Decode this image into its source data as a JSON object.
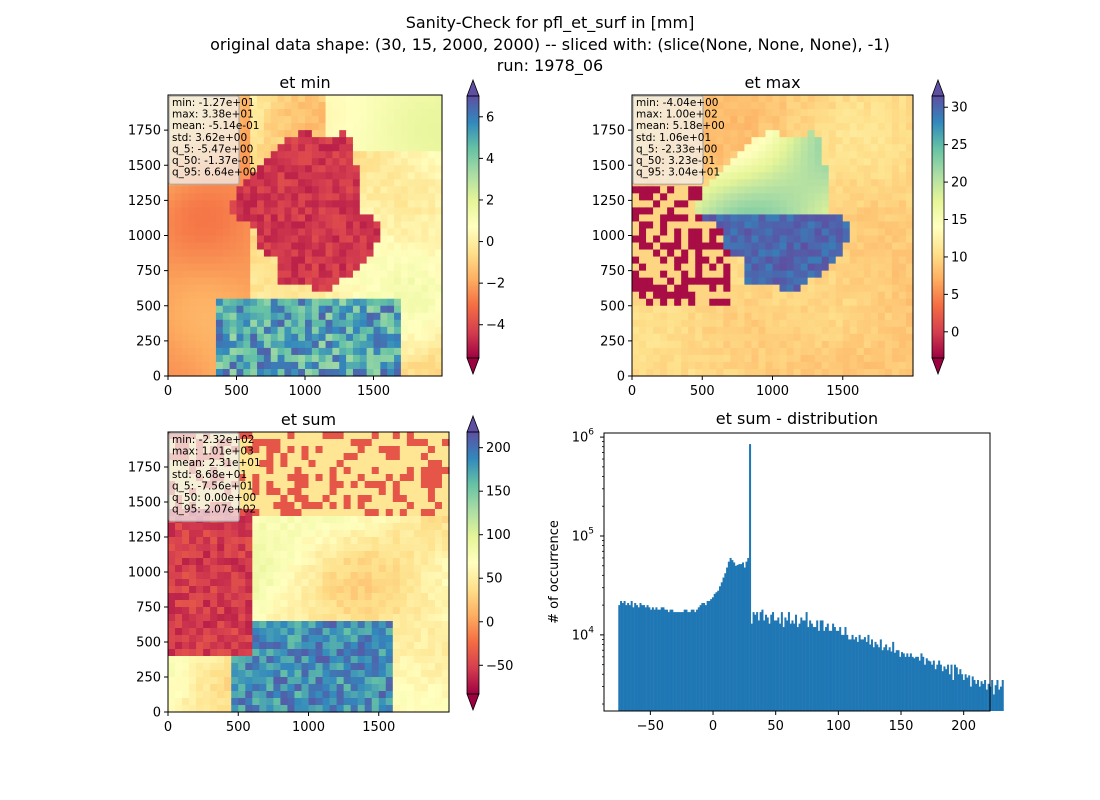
{
  "figure": {
    "title_lines": [
      "Sanity-Check for pfl_et_surf in [mm]",
      "original data shape: (30, 15, 2000, 2000) -- sliced with: (slice(None, None, None), -1)",
      "run: 1978_06"
    ]
  },
  "colors": {
    "cmap": [
      "#9e0142",
      "#d53e4f",
      "#f46d43",
      "#fdae61",
      "#fee08b",
      "#ffffbf",
      "#e6f598",
      "#abdda4",
      "#66c2a5",
      "#3288bd",
      "#5e4fa2"
    ],
    "hist_bar": "#1f77b4"
  },
  "chart_data": [
    {
      "type": "heatmap",
      "title": "et min",
      "xlim": [
        0,
        2000
      ],
      "ylim": [
        0,
        2000
      ],
      "xticks": [
        "0",
        "500",
        "1000",
        "1500"
      ],
      "yticks": [
        "0",
        "250",
        "500",
        "750",
        "1000",
        "1250",
        "1500",
        "1750"
      ],
      "colorbar": {
        "range": [
          -5.6,
          7.0
        ],
        "ticks": [
          "−4",
          "−2",
          "0",
          "2",
          "4",
          "6"
        ],
        "extend": "both"
      },
      "stats": [
        "min: -1.27e+01",
        "max: 3.38e+01",
        "mean: -5.14e-01",
        "std: 3.62e+00",
        "q_5: -5.47e+00",
        "q_50: -1.37e-01",
        "q_95: 6.64e+00"
      ]
    },
    {
      "type": "heatmap",
      "title": "et max",
      "xlim": [
        0,
        2000
      ],
      "ylim": [
        0,
        2000
      ],
      "xticks": [
        "0",
        "500",
        "1000",
        "1500"
      ],
      "yticks": [
        "0",
        "250",
        "500",
        "750",
        "1000",
        "1250",
        "1500",
        "1750"
      ],
      "colorbar": {
        "range": [
          -3.5,
          31.5
        ],
        "ticks": [
          "0",
          "5",
          "10",
          "15",
          "20",
          "25",
          "30"
        ],
        "extend": "both"
      },
      "stats": [
        "min: -4.04e+00",
        "max: 1.00e+02",
        "mean: 5.18e+00",
        "std: 1.06e+01",
        "q_5: -2.33e+00",
        "q_50: 3.23e-01",
        "q_95: 3.04e+01"
      ]
    },
    {
      "type": "heatmap",
      "title": "et sum",
      "xlim": [
        0,
        2000
      ],
      "ylim": [
        0,
        2000
      ],
      "xticks": [
        "0",
        "500",
        "1000",
        "1500"
      ],
      "yticks": [
        "0",
        "250",
        "500",
        "750",
        "1000",
        "1250",
        "1500",
        "1750"
      ],
      "colorbar": {
        "range": [
          -83,
          218
        ],
        "ticks": [
          "−50",
          "0",
          "50",
          "100",
          "150",
          "200"
        ],
        "extend": "both"
      },
      "stats": [
        "min: -2.32e+02",
        "max: 1.01e+03",
        "mean: 2.31e+01",
        "std: 8.68e+01",
        "q_5: -7.56e+01",
        "q_50: 0.00e+00",
        "q_95: 2.07e+02"
      ]
    },
    {
      "type": "bar",
      "title": "et sum - distribution",
      "ylabel": "# of occurrence",
      "yscale": "log",
      "xlim": [
        -87,
        221
      ],
      "ylim": [
        1700,
        1100000
      ],
      "xticks": [
        "−50",
        "0",
        "50",
        "100",
        "150",
        "200"
      ],
      "ytick_labels": [
        "10^4",
        "10^5",
        "10^6"
      ],
      "bin_width": 1.41,
      "x_start": -75.6,
      "counts": [
        20000,
        22000,
        21000,
        22000,
        20000,
        21000,
        20000,
        22000,
        19000,
        21000,
        20000,
        19000,
        21000,
        20000,
        20000,
        19000,
        20000,
        19000,
        18000,
        19000,
        18000,
        19000,
        18000,
        18000,
        19000,
        19000,
        18000,
        18000,
        17000,
        18000,
        18000,
        17000,
        17000,
        17000,
        17000,
        17000,
        17000,
        18000,
        18000,
        17000,
        17000,
        18000,
        18000,
        17000,
        18000,
        19000,
        20000,
        21000,
        21000,
        20000,
        22000,
        22000,
        23000,
        24000,
        26000,
        27000,
        28000,
        31000,
        34000,
        38000,
        42000,
        48000,
        55000,
        60000,
        57000,
        54000,
        50000,
        51000,
        52000,
        52000,
        54000,
        48000,
        55000,
        60000,
        850000,
        13000,
        17000,
        16000,
        17000,
        14000,
        17000,
        18000,
        14000,
        16000,
        15000,
        13000,
        16000,
        17000,
        14000,
        14000,
        15000,
        13000,
        17000,
        12000,
        15000,
        14000,
        17000,
        13000,
        14000,
        13000,
        16000,
        12000,
        13000,
        15000,
        14000,
        14000,
        17000,
        12000,
        14000,
        13000,
        12000,
        12000,
        14000,
        11000,
        14000,
        14000,
        11000,
        12000,
        13000,
        11000,
        11000,
        13000,
        12000,
        11000,
        11000,
        12000,
        10000,
        10000,
        12000,
        10000,
        9000,
        9000,
        10000,
        9000,
        9500,
        8500,
        10000,
        9000,
        9000,
        9500,
        8500,
        10000,
        8000,
        9000,
        7500,
        8500,
        8000,
        7500,
        9000,
        7000,
        7500,
        8000,
        7000,
        7500,
        6800,
        8500,
        6600,
        7000,
        7000,
        6000,
        6700,
        6500,
        6000,
        6500,
        6000,
        6500,
        6000,
        5800,
        6000,
        6000,
        5500,
        6500,
        6000,
        5000,
        5800,
        5500,
        5400,
        5000,
        5500,
        4500,
        5000,
        5500,
        5000,
        4300,
        4800,
        4500,
        5000,
        4000,
        5000,
        3500,
        5000,
        4700,
        4000,
        4500,
        4000,
        3500,
        4000,
        3700,
        3900,
        3000,
        3800,
        3500,
        3200,
        3500,
        3000,
        3400,
        3200,
        3500,
        2800,
        3200,
        3000,
        3500,
        2500,
        3100,
        3500,
        2800,
        3000,
        3500
      ]
    }
  ]
}
